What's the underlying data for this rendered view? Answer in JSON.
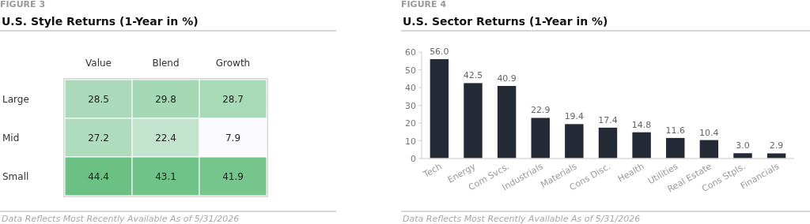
{
  "chart_data": [
    {
      "type": "heatmap",
      "title": "U.S. Style Returns (1-Year in %)",
      "categories": [
        "Value",
        "Blend",
        "Growth"
      ],
      "y_categories": [
        "Large",
        "Mid",
        "Small"
      ],
      "cells": [
        [
          28.5,
          29.8,
          28.7
        ],
        [
          27.2,
          22.4,
          7.9
        ],
        [
          44.4,
          43.1,
          41.9
        ]
      ],
      "cell_labels": [
        [
          "28.5",
          "29.8",
          "28.7"
        ],
        [
          "27.2",
          "22.4",
          "7.9"
        ],
        [
          "44.4",
          "43.1",
          "41.9"
        ]
      ],
      "annotations": [
        "FIGURE 3",
        "Data Reflects Most Recently Available As of 5/31/2026"
      ]
    },
    {
      "type": "bar",
      "title": "U.S. Sector Returns (1-Year in %)",
      "categories": [
        "Tech",
        "Energy",
        "Com Svcs.",
        "Industrials",
        "Materials",
        "Cons Disc.",
        "Health",
        "Utilities",
        "Real Estate",
        "Cons Stpls.",
        "Financials"
      ],
      "values": [
        56.0,
        42.5,
        40.9,
        22.9,
        19.4,
        17.4,
        14.8,
        11.6,
        10.4,
        3.0,
        2.9
      ],
      "color": "#232a35",
      "value_labels": [
        "56.0",
        "42.5",
        "40.9",
        "22.9",
        "19.4",
        "17.4",
        "14.8",
        "11.6",
        "10.4",
        "3.0",
        "2.9"
      ],
      "ylim": [
        0,
        60
      ],
      "yticks": [
        0,
        10,
        20,
        30,
        40,
        50,
        60
      ],
      "grid": false,
      "annotations": [
        "FIGURE 4",
        "Data Reflects Most Recently Available As of 5/31/2026"
      ]
    }
  ]
}
